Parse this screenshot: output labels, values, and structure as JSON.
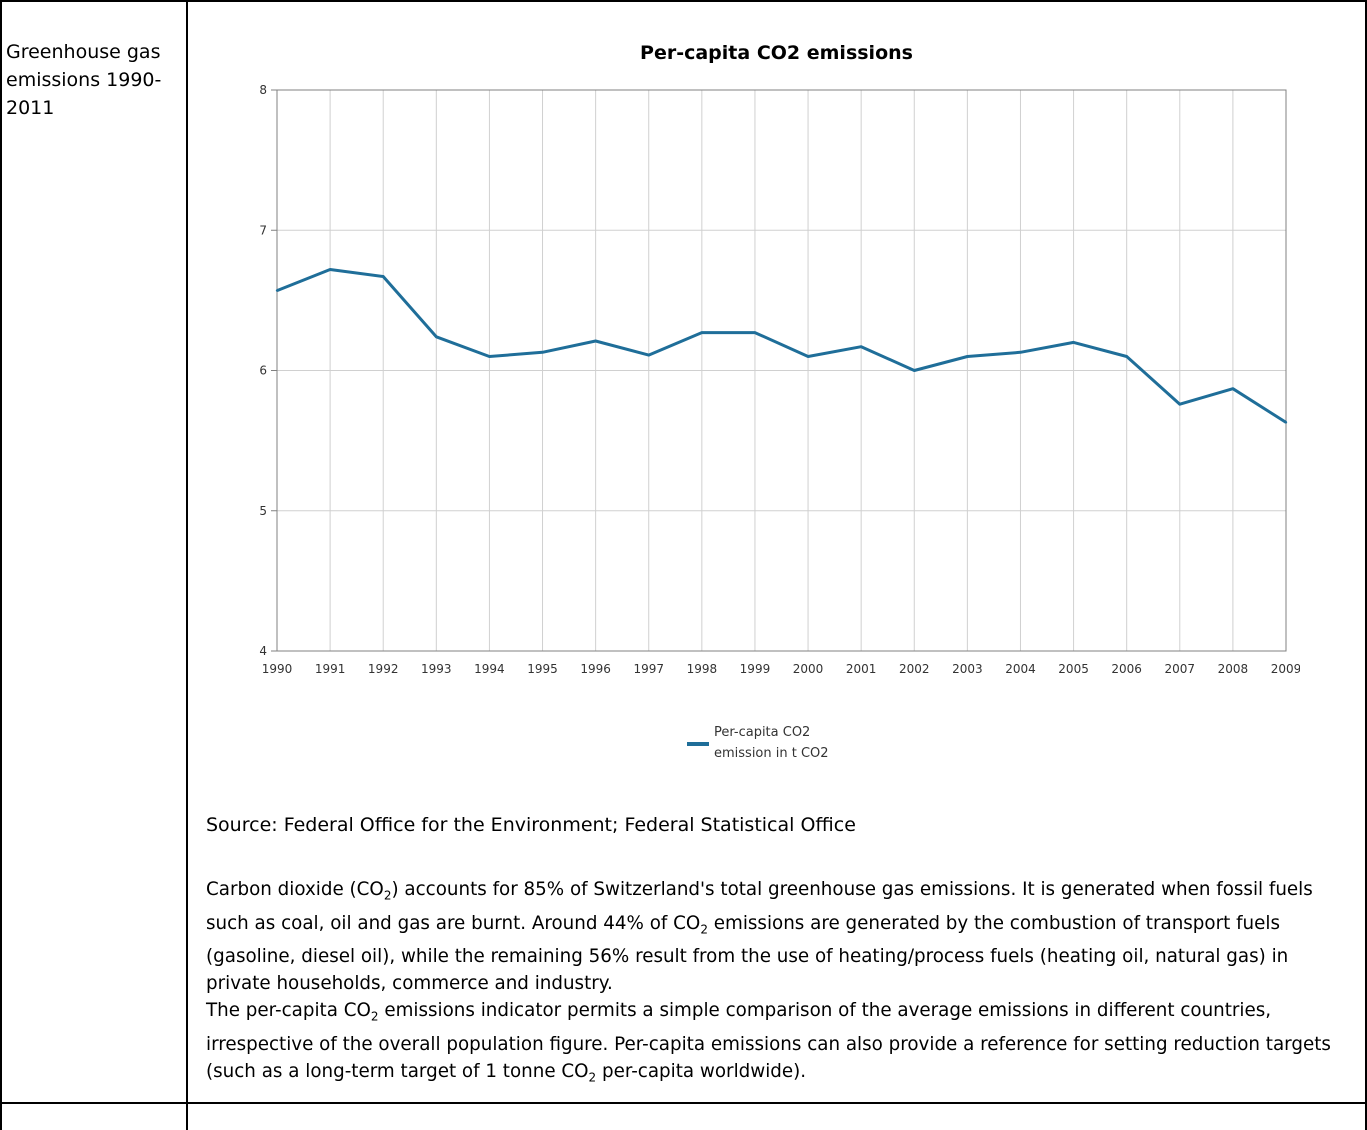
{
  "left_cell": {
    "label": "Greenhouse gas emissions 1990-2011"
  },
  "chart_data": {
    "type": "line",
    "title": "Per-capita CO2 emissions",
    "x": [
      "1990",
      "1991",
      "1992",
      "1993",
      "1994",
      "1995",
      "1996",
      "1997",
      "1998",
      "1999",
      "2000",
      "2001",
      "2002",
      "2003",
      "2004",
      "2005",
      "2006",
      "2007",
      "2008",
      "2009"
    ],
    "series": [
      {
        "name": "Per-capita CO2 emission in t CO2",
        "values": [
          6.57,
          6.72,
          6.67,
          6.24,
          6.1,
          6.13,
          6.21,
          6.11,
          6.27,
          6.27,
          6.1,
          6.17,
          6.0,
          6.1,
          6.13,
          6.2,
          6.1,
          5.76,
          5.87,
          5.63
        ]
      }
    ],
    "ylim": [
      4,
      8
    ],
    "yticks": [
      "4",
      "5",
      "6",
      "7",
      "8"
    ],
    "grid": true,
    "legend_position": "bottom",
    "legend_lines": [
      "Per-capita CO2",
      "emission in t CO2"
    ],
    "colors": {
      "line": "#1f6e99",
      "grid": "#d0d0d0",
      "axis": "#808080"
    }
  },
  "source": "Source: Federal Office for the Environment; Federal Statistical Office",
  "paragraph": {
    "p1_a": "Carbon dioxide (CO",
    "p1_sub1": "2",
    "p1_b": ") accounts for 85% of Switzerland's total greenhouse gas emissions. It is generated when fossil fuels such as coal, oil and gas are burnt. Around 44% of CO",
    "p1_sub2": "2",
    "p1_c": " emissions are generated by the combustion of transport fuels (gasoline, diesel oil), while the remaining 56% result from the use of heating/process fuels (heating oil, natural gas) in private households, commerce and industry.",
    "p2_a": "The per-capita CO",
    "p2_sub1": "2",
    "p2_b": " emissions indicator permits a simple comparison of the average emissions in different countries, irrespective of the overall population figure. Per-capita emissions can also provide a reference for setting reduction targets (such as a long-term target of 1 tonne CO",
    "p2_sub2": "2",
    "p2_c": " per-capita worldwide)."
  }
}
